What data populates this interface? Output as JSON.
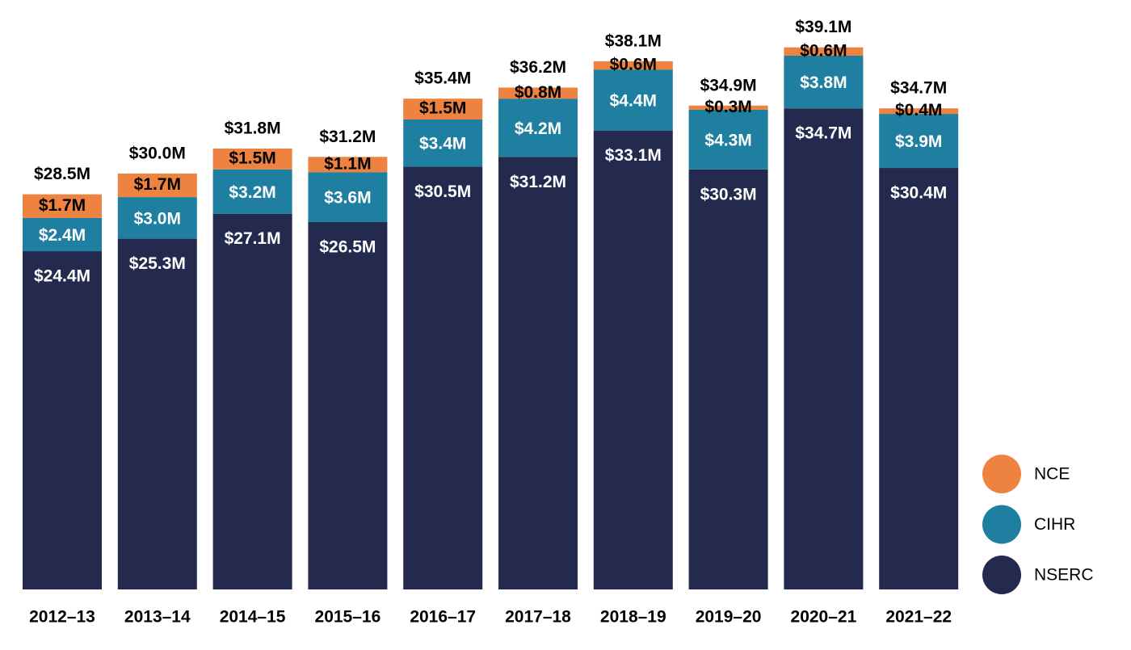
{
  "chart_data": {
    "type": "stacked_bar",
    "categories": [
      "2012–13",
      "2013–14",
      "2014–15",
      "2015–16",
      "2016–17",
      "2017–18",
      "2018–19",
      "2019–20",
      "2020–21",
      "2021–22"
    ],
    "series": [
      {
        "name": "NSERC",
        "color": "#232a4e",
        "values": [
          24.4,
          25.3,
          27.1,
          26.5,
          30.5,
          31.2,
          33.1,
          30.3,
          34.7,
          30.4
        ],
        "value_labels": [
          "$24.4M",
          "$25.3M",
          "$27.1M",
          "$26.5M",
          "$30.5M",
          "$31.2M",
          "$33.1M",
          "$30.3M",
          "$34.7M",
          "$30.4M"
        ]
      },
      {
        "name": "CIHR",
        "color": "#1f7fa0",
        "values": [
          2.4,
          3.0,
          3.2,
          3.6,
          3.4,
          4.2,
          4.4,
          4.3,
          3.8,
          3.9
        ],
        "value_labels": [
          "$2.4M",
          "$3.0M",
          "$3.2M",
          "$3.6M",
          "$3.4M",
          "$4.2M",
          "$4.4M",
          "$4.3M",
          "$3.8M",
          "$3.9M"
        ]
      },
      {
        "name": "NCE",
        "color": "#ee8240",
        "values": [
          1.7,
          1.7,
          1.5,
          1.1,
          1.5,
          0.8,
          0.6,
          0.3,
          0.6,
          0.4
        ],
        "value_labels": [
          "$1.7M",
          "$1.7M",
          "$1.5M",
          "$1.1M",
          "$1.5M",
          "$0.8M",
          "$0.6M",
          "$0.3M",
          "$0.6M",
          "$0.4M"
        ]
      }
    ],
    "totals": {
      "values": [
        28.5,
        30.0,
        31.8,
        31.2,
        35.4,
        36.2,
        38.1,
        34.9,
        39.1,
        34.7
      ],
      "value_labels": [
        "$28.5M",
        "$30.0M",
        "$31.8M",
        "$31.2M",
        "$35.4M",
        "$36.2M",
        "$38.1M",
        "$34.9M",
        "$39.1M",
        "$34.7M"
      ]
    },
    "legend": "right"
  }
}
